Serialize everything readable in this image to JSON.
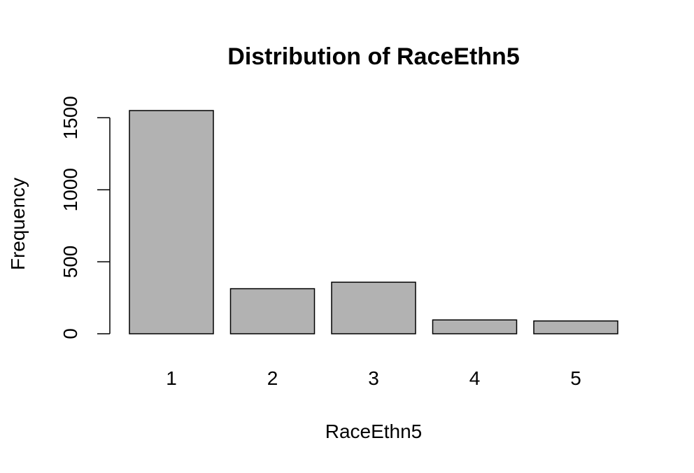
{
  "chart_data": {
    "type": "bar",
    "title": "Distribution of RaceEthn5",
    "xlabel": "RaceEthn5",
    "ylabel": "Frequency",
    "categories": [
      "1",
      "2",
      "3",
      "4",
      "5"
    ],
    "values": [
      1550,
      313,
      358,
      96,
      89
    ],
    "yticks": [
      "0",
      "500",
      "1000",
      "1500"
    ],
    "ylim": [
      0,
      1560
    ],
    "grid": false,
    "bar_color": "#b2b2b2",
    "bar_border_color": "#000000"
  }
}
